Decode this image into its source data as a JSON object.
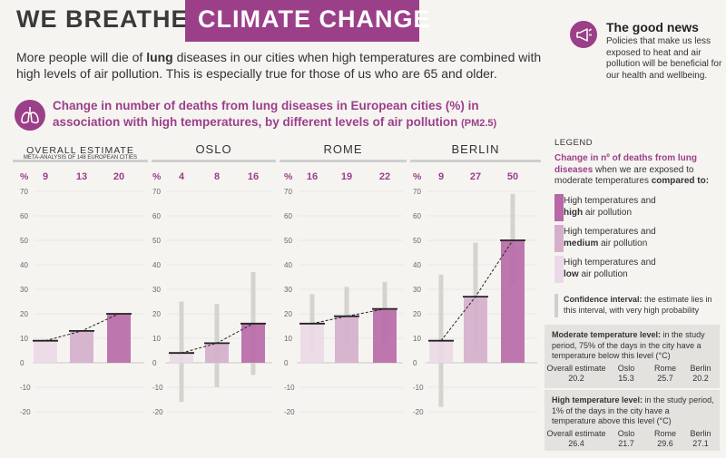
{
  "header": {
    "brand_left": "WE BREATHE",
    "brand_right": "CLIMATE CHANGE",
    "intro_before": "More people will die of ",
    "intro_bold": "lung",
    "intro_after": " diseases in our cities when high temperatures are combined with high levels of air pollution. This is especially true for those of us who are 65 and older."
  },
  "good_news": {
    "title": "The good news",
    "text": "Policies that make us less exposed to heat and air pollution will be beneficial for our health and wellbeing."
  },
  "subtitle": {
    "main": "Change in number of deaths from lung diseases in European cities (%) in association with high temperatures, by different levels of air pollution",
    "pm": "(PM2.5)"
  },
  "chart_data": {
    "type": "bar",
    "ylabel": "%",
    "ylim": [
      -20,
      75
    ],
    "yticks": [
      70,
      60,
      50,
      40,
      30,
      20,
      10,
      0,
      -10,
      -20
    ],
    "categories": [
      "low air pollution",
      "medium air pollution",
      "high air pollution"
    ],
    "colors": [
      "#ead9e6",
      "#d5aecb",
      "#b868a6"
    ],
    "panels": [
      {
        "title": "OVERALL ESTIMATE",
        "note": "META-ANALYSIS OF 148 EUROPEAN CITIES",
        "values": [
          9,
          13,
          20
        ],
        "ci": [
          null,
          null,
          null
        ]
      },
      {
        "title": "OSLO",
        "note": "",
        "values": [
          4,
          8,
          16
        ],
        "ci": [
          [
            -16,
            25
          ],
          [
            -10,
            24
          ],
          [
            -5,
            37
          ]
        ]
      },
      {
        "title": "ROME",
        "note": "",
        "values": [
          16,
          19,
          22
        ],
        "ci": [
          [
            5,
            28
          ],
          [
            7,
            31
          ],
          [
            8,
            33
          ]
        ]
      },
      {
        "title": "BERLIN",
        "note": "",
        "values": [
          9,
          27,
          50
        ],
        "ci": [
          [
            -18,
            36
          ],
          [
            5,
            49
          ],
          [
            32,
            69
          ]
        ]
      }
    ]
  },
  "legend": {
    "title": "LEGEND",
    "head_accent": "Change in nº of deaths from lung diseases",
    "head_plain": " when we are exposed to moderate temperatures ",
    "head_bold": "compared to:",
    "items": [
      {
        "line1": "High temperatures and",
        "bold": "high",
        "rest": " air pollution",
        "color": "#b868a6"
      },
      {
        "line1": "High temperatures and",
        "bold": "medium",
        "rest": " air pollution",
        "color": "#d5aecb"
      },
      {
        "line1": "High temperatures and",
        "bold": "low",
        "rest": " air pollution",
        "color": "#ead9e6"
      }
    ],
    "ci_bold": "Confidence interval:",
    "ci_text": " the estimate lies in this interval, with very high probability"
  },
  "moderate_box": {
    "title_bold": "Moderate temperature level:",
    "title_text": " in the study period, 75% of the days in the city have a temperature below this level (°C)",
    "headers": [
      "Overall estimate",
      "Oslo",
      "Rome",
      "Berlin"
    ],
    "values": [
      "20.2",
      "15.3",
      "25.7",
      "20.2"
    ]
  },
  "high_box": {
    "title_bold": "High temperature level:",
    "title_text": " in the study period, 1% of the days in the city have a temperature above this level (°C)",
    "headers": [
      "Overall estimate",
      "Oslo",
      "Rome",
      "Berlin"
    ],
    "values": [
      "26.4",
      "21.7",
      "29.6",
      "27.1"
    ]
  }
}
